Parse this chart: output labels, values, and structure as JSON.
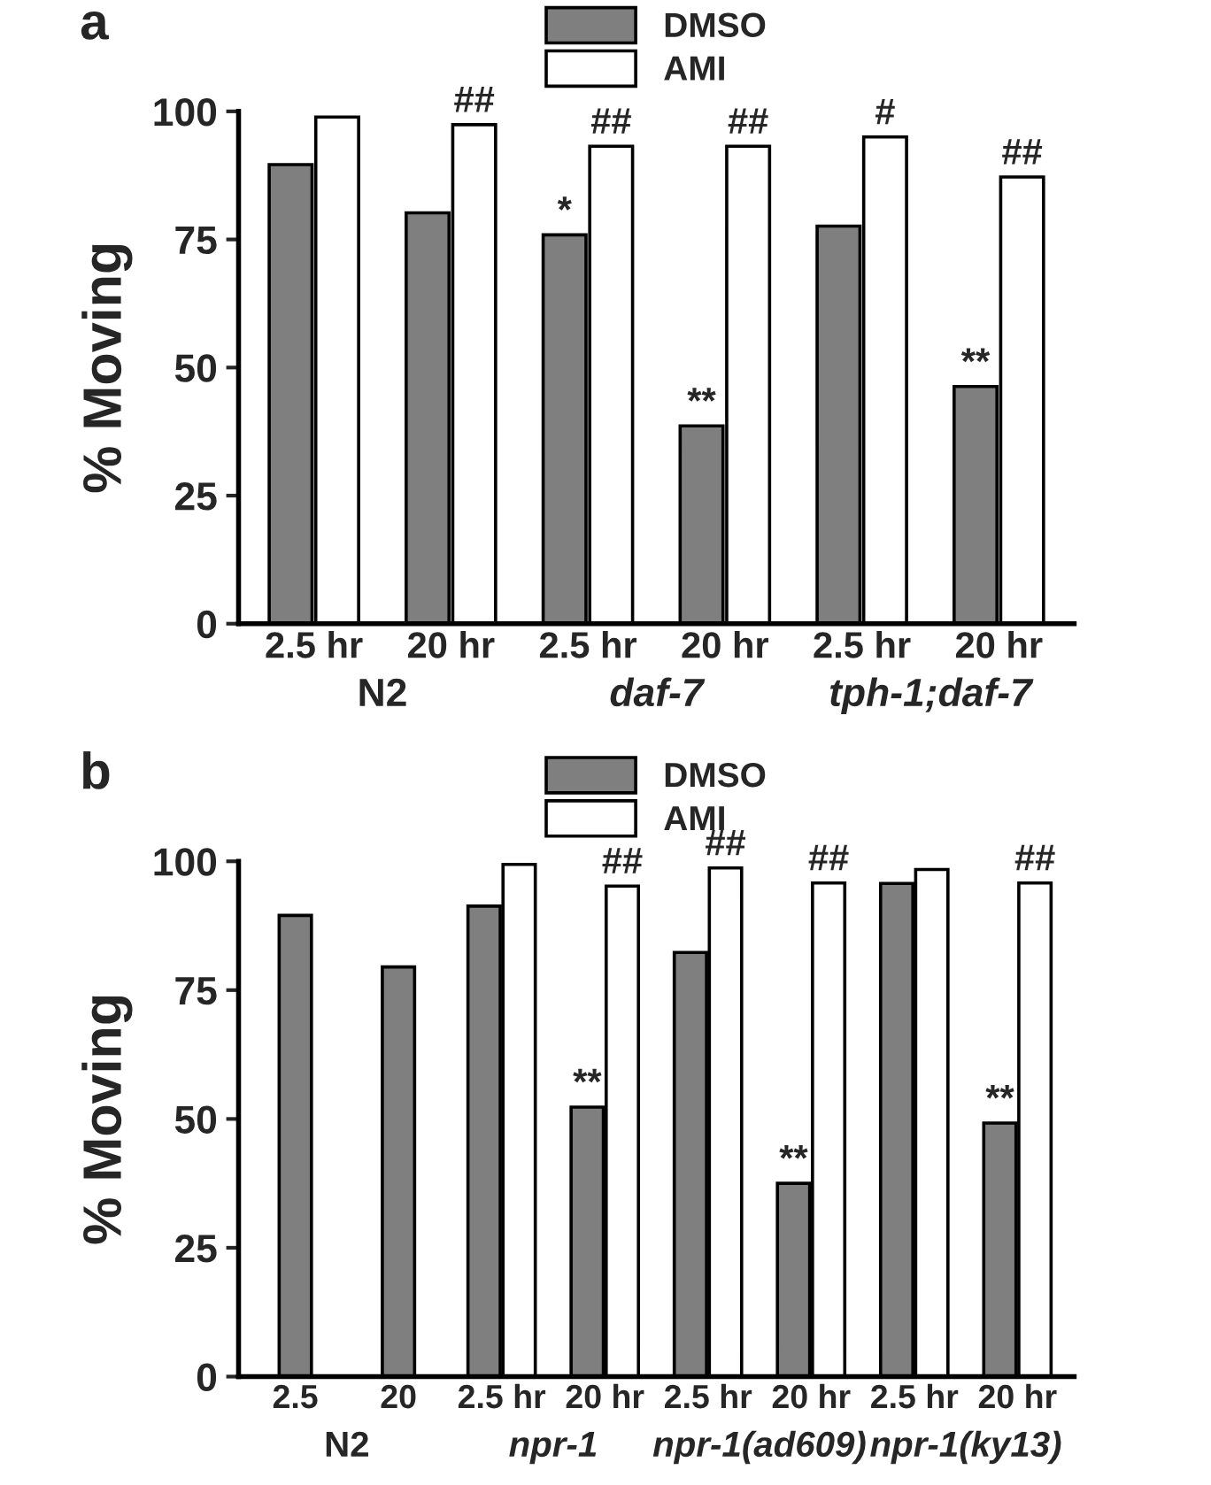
{
  "chart_data": [
    {
      "type": "bar",
      "title": "a",
      "ylabel": "% Moving",
      "categories": [
        "2.5 hr",
        "20 hr",
        "2.5 hr",
        "20 hr",
        "2.5 hr",
        "20 hr"
      ],
      "series": [
        {
          "name": "DMSO",
          "color": "#7f7f7f",
          "values": [
            89.6,
            80.2,
            75.9,
            38.6,
            77.6,
            46.3
          ],
          "value_labels": [
            null,
            null,
            "*",
            "**",
            null,
            "**"
          ]
        },
        {
          "name": "AMI",
          "color": "#ffffff",
          "values": [
            98.9,
            97.4,
            93.2,
            93.2,
            95.0,
            87.2
          ],
          "value_labels": [
            null,
            "##",
            "##",
            "##",
            "#",
            "##"
          ]
        }
      ],
      "annotations": [
        "N2",
        "daf-7",
        "tph-1;daf-7"
      ],
      "ylim": [
        0,
        100
      ],
      "yticks": [
        0,
        25,
        50,
        75,
        100
      ],
      "grid": false,
      "legend": "top"
    },
    {
      "type": "bar",
      "title": "b",
      "ylabel": "% Moving",
      "categories": [
        "2.5",
        "20",
        "2.5 hr",
        "20 hr",
        "2.5 hr",
        "20 hr",
        "2.5 hr",
        "20 hr"
      ],
      "series": [
        {
          "name": "DMSO",
          "color": "#7f7f7f",
          "values": [
            89.5,
            79.5,
            91.3,
            52.3,
            82.3,
            37.5,
            95.7,
            49.2
          ],
          "value_labels": [
            null,
            null,
            null,
            "**",
            null,
            "**",
            null,
            "**"
          ]
        },
        {
          "name": "AMI",
          "color": "#ffffff",
          "values": [
            null,
            null,
            99.4,
            95.2,
            98.7,
            95.8,
            98.4,
            95.8
          ],
          "value_labels": [
            null,
            null,
            null,
            "##",
            "##",
            "##",
            null,
            "##"
          ]
        }
      ],
      "annotations": [
        "N2",
        "npr-1",
        "npr-1(ad609)",
        "npr-1(ky13)"
      ],
      "ylim": [
        0,
        100
      ],
      "yticks": [
        0,
        25,
        50,
        75,
        100
      ],
      "grid": false,
      "legend": "top"
    }
  ]
}
